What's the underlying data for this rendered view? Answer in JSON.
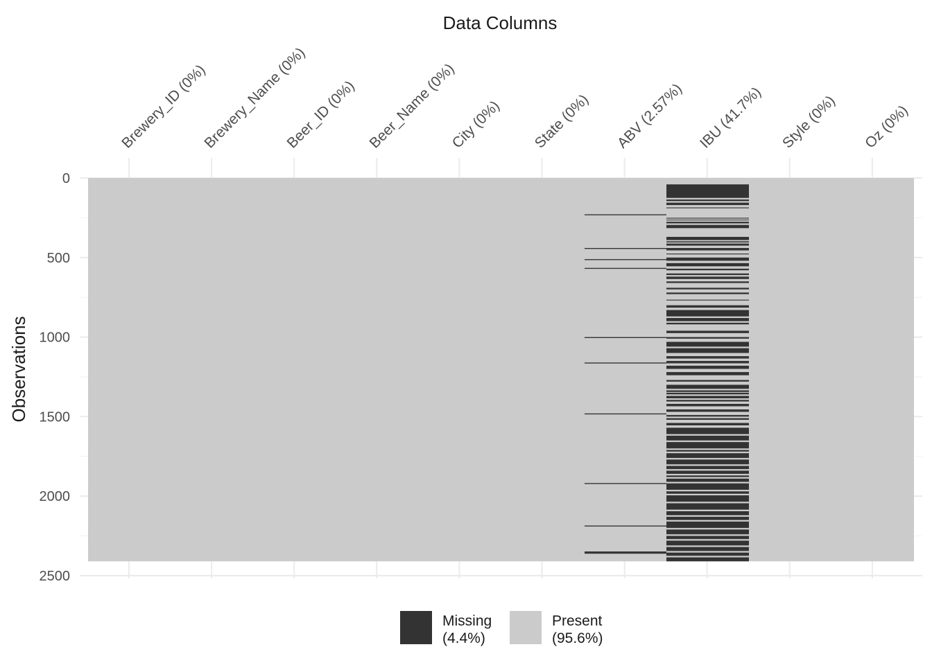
{
  "chart_data": {
    "type": "heatmap",
    "title": "Data Columns",
    "xlabel": "Data Columns",
    "ylabel": "Observations",
    "columns": [
      "Brewery_ID (0%)",
      "Brewery_Name (0%)",
      "Beer_ID (0%)",
      "Beer_Name (0%)",
      "City (0%)",
      "State (0%)",
      "ABV (2.57%)",
      "IBU (41.7%)",
      "Style (0%)",
      "Oz (0%)"
    ],
    "y_ticks": [
      0,
      500,
      1000,
      1500,
      2000,
      2500
    ],
    "ylim": [
      0,
      2500
    ],
    "n_observations": 2410,
    "abv_missing_rows": [
      228,
      234,
      440,
      446,
      510,
      516,
      565,
      571,
      1000,
      1006,
      1160,
      1166,
      1480,
      1486,
      1918,
      1924,
      2185,
      2191,
      2348,
      2362
    ],
    "ibu_missing_rows": [
      [
        40,
        125
      ],
      [
        135,
        145
      ],
      [
        155,
        170
      ],
      [
        185,
        190
      ],
      [
        250,
        255
      ],
      [
        262,
        266
      ],
      [
        275,
        285
      ],
      [
        295,
        315
      ],
      [
        370,
        390
      ],
      [
        398,
        405
      ],
      [
        412,
        425
      ],
      [
        440,
        455
      ],
      [
        475,
        480
      ],
      [
        500,
        520
      ],
      [
        535,
        555
      ],
      [
        570,
        580
      ],
      [
        600,
        610
      ],
      [
        620,
        635
      ],
      [
        650,
        660
      ],
      [
        690,
        700
      ],
      [
        720,
        730
      ],
      [
        765,
        770
      ],
      [
        800,
        815
      ],
      [
        830,
        870
      ],
      [
        880,
        900
      ],
      [
        910,
        920
      ],
      [
        960,
        975
      ],
      [
        1000,
        1010
      ],
      [
        1030,
        1060
      ],
      [
        1070,
        1100
      ],
      [
        1120,
        1135
      ],
      [
        1150,
        1165
      ],
      [
        1180,
        1200
      ],
      [
        1220,
        1240
      ],
      [
        1270,
        1280
      ],
      [
        1300,
        1325
      ],
      [
        1335,
        1345
      ],
      [
        1350,
        1360
      ],
      [
        1370,
        1385
      ],
      [
        1395,
        1405
      ],
      [
        1420,
        1435
      ],
      [
        1455,
        1470
      ],
      [
        1490,
        1500
      ],
      [
        1510,
        1520
      ],
      [
        1540,
        1555
      ],
      [
        1570,
        1610
      ],
      [
        1620,
        1650
      ],
      [
        1660,
        1700
      ],
      [
        1710,
        1720
      ],
      [
        1730,
        1760
      ],
      [
        1770,
        1800
      ],
      [
        1810,
        1830
      ],
      [
        1840,
        1860
      ],
      [
        1870,
        1880
      ],
      [
        1890,
        1910
      ],
      [
        1920,
        1960
      ],
      [
        1970,
        1985
      ],
      [
        1995,
        2035
      ],
      [
        2045,
        2085
      ],
      [
        2095,
        2120
      ],
      [
        2130,
        2150
      ],
      [
        2160,
        2200
      ],
      [
        2210,
        2240
      ],
      [
        2250,
        2270
      ],
      [
        2280,
        2310
      ],
      [
        2320,
        2345
      ],
      [
        2355,
        2375
      ],
      [
        2385,
        2410
      ]
    ],
    "colors": {
      "missing": "#333333",
      "present": "#cbcbcb"
    },
    "legend": {
      "position": "bottom",
      "items": [
        {
          "label": "Missing",
          "pct": "(4.4%)",
          "color": "#333333"
        },
        {
          "label": "Present",
          "pct": "(95.6%)",
          "color": "#cbcbcb"
        }
      ]
    }
  }
}
